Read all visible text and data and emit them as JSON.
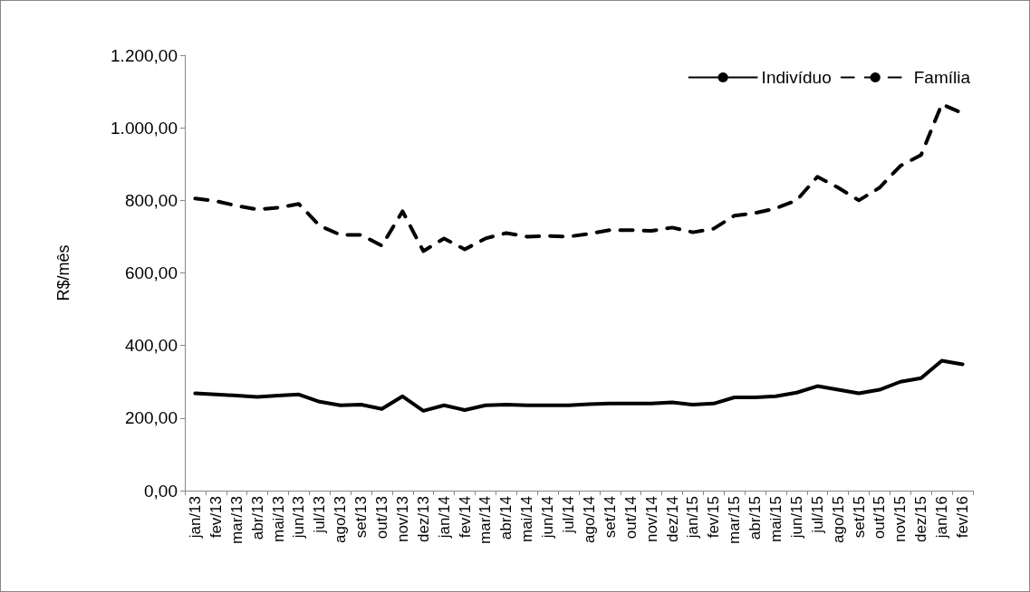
{
  "chart_data": {
    "type": "line",
    "ylabel": "R$/mês",
    "categories": [
      "jan/13",
      "fev/13",
      "mar/13",
      "abr/13",
      "mai/13",
      "jun/13",
      "jul/13",
      "ago/13",
      "set/13",
      "out/13",
      "nov/13",
      "dez/13",
      "jan/14",
      "fev/14",
      "mar/14",
      "abr/14",
      "mai/14",
      "jun/14",
      "jul/14",
      "ago/14",
      "set/14",
      "out/14",
      "nov/14",
      "dez/14",
      "jan/15",
      "fev/15",
      "mar/15",
      "abr/15",
      "mai/15",
      "jun/15",
      "jul/15",
      "ago/15",
      "set/15",
      "out/15",
      "nov/15",
      "dez/15",
      "jan/16",
      "fev/16"
    ],
    "series": [
      {
        "name": "Indivíduo",
        "color": "#000000",
        "line_style": "solid",
        "values": [
          268,
          265,
          262,
          258,
          262,
          265,
          245,
          235,
          237,
          225,
          260,
          220,
          235,
          222,
          235,
          237,
          235,
          235,
          235,
          238,
          240,
          240,
          240,
          243,
          237,
          240,
          257,
          257,
          260,
          270,
          288,
          278,
          268,
          278,
          300,
          310,
          358,
          348
        ]
      },
      {
        "name": "Família",
        "color": "#000000",
        "line_style": "dashed",
        "values": [
          805,
          798,
          785,
          775,
          780,
          790,
          730,
          705,
          705,
          675,
          770,
          660,
          695,
          665,
          695,
          710,
          700,
          702,
          700,
          708,
          718,
          718,
          716,
          725,
          712,
          722,
          758,
          765,
          778,
          800,
          865,
          835,
          800,
          835,
          895,
          925,
          1065,
          1040
        ]
      }
    ],
    "ylim": [
      0,
      1200
    ],
    "yticks": [
      {
        "value": 0,
        "label": "0,00"
      },
      {
        "value": 200,
        "label": "200,00"
      },
      {
        "value": 400,
        "label": "400,00"
      },
      {
        "value": 600,
        "label": "600,00"
      },
      {
        "value": 800,
        "label": "800,00"
      },
      {
        "value": 1000,
        "label": "1.000,00"
      },
      {
        "value": 1200,
        "label": "1.200,00"
      }
    ],
    "grid": false,
    "legend": "top right",
    "marker": "none"
  }
}
